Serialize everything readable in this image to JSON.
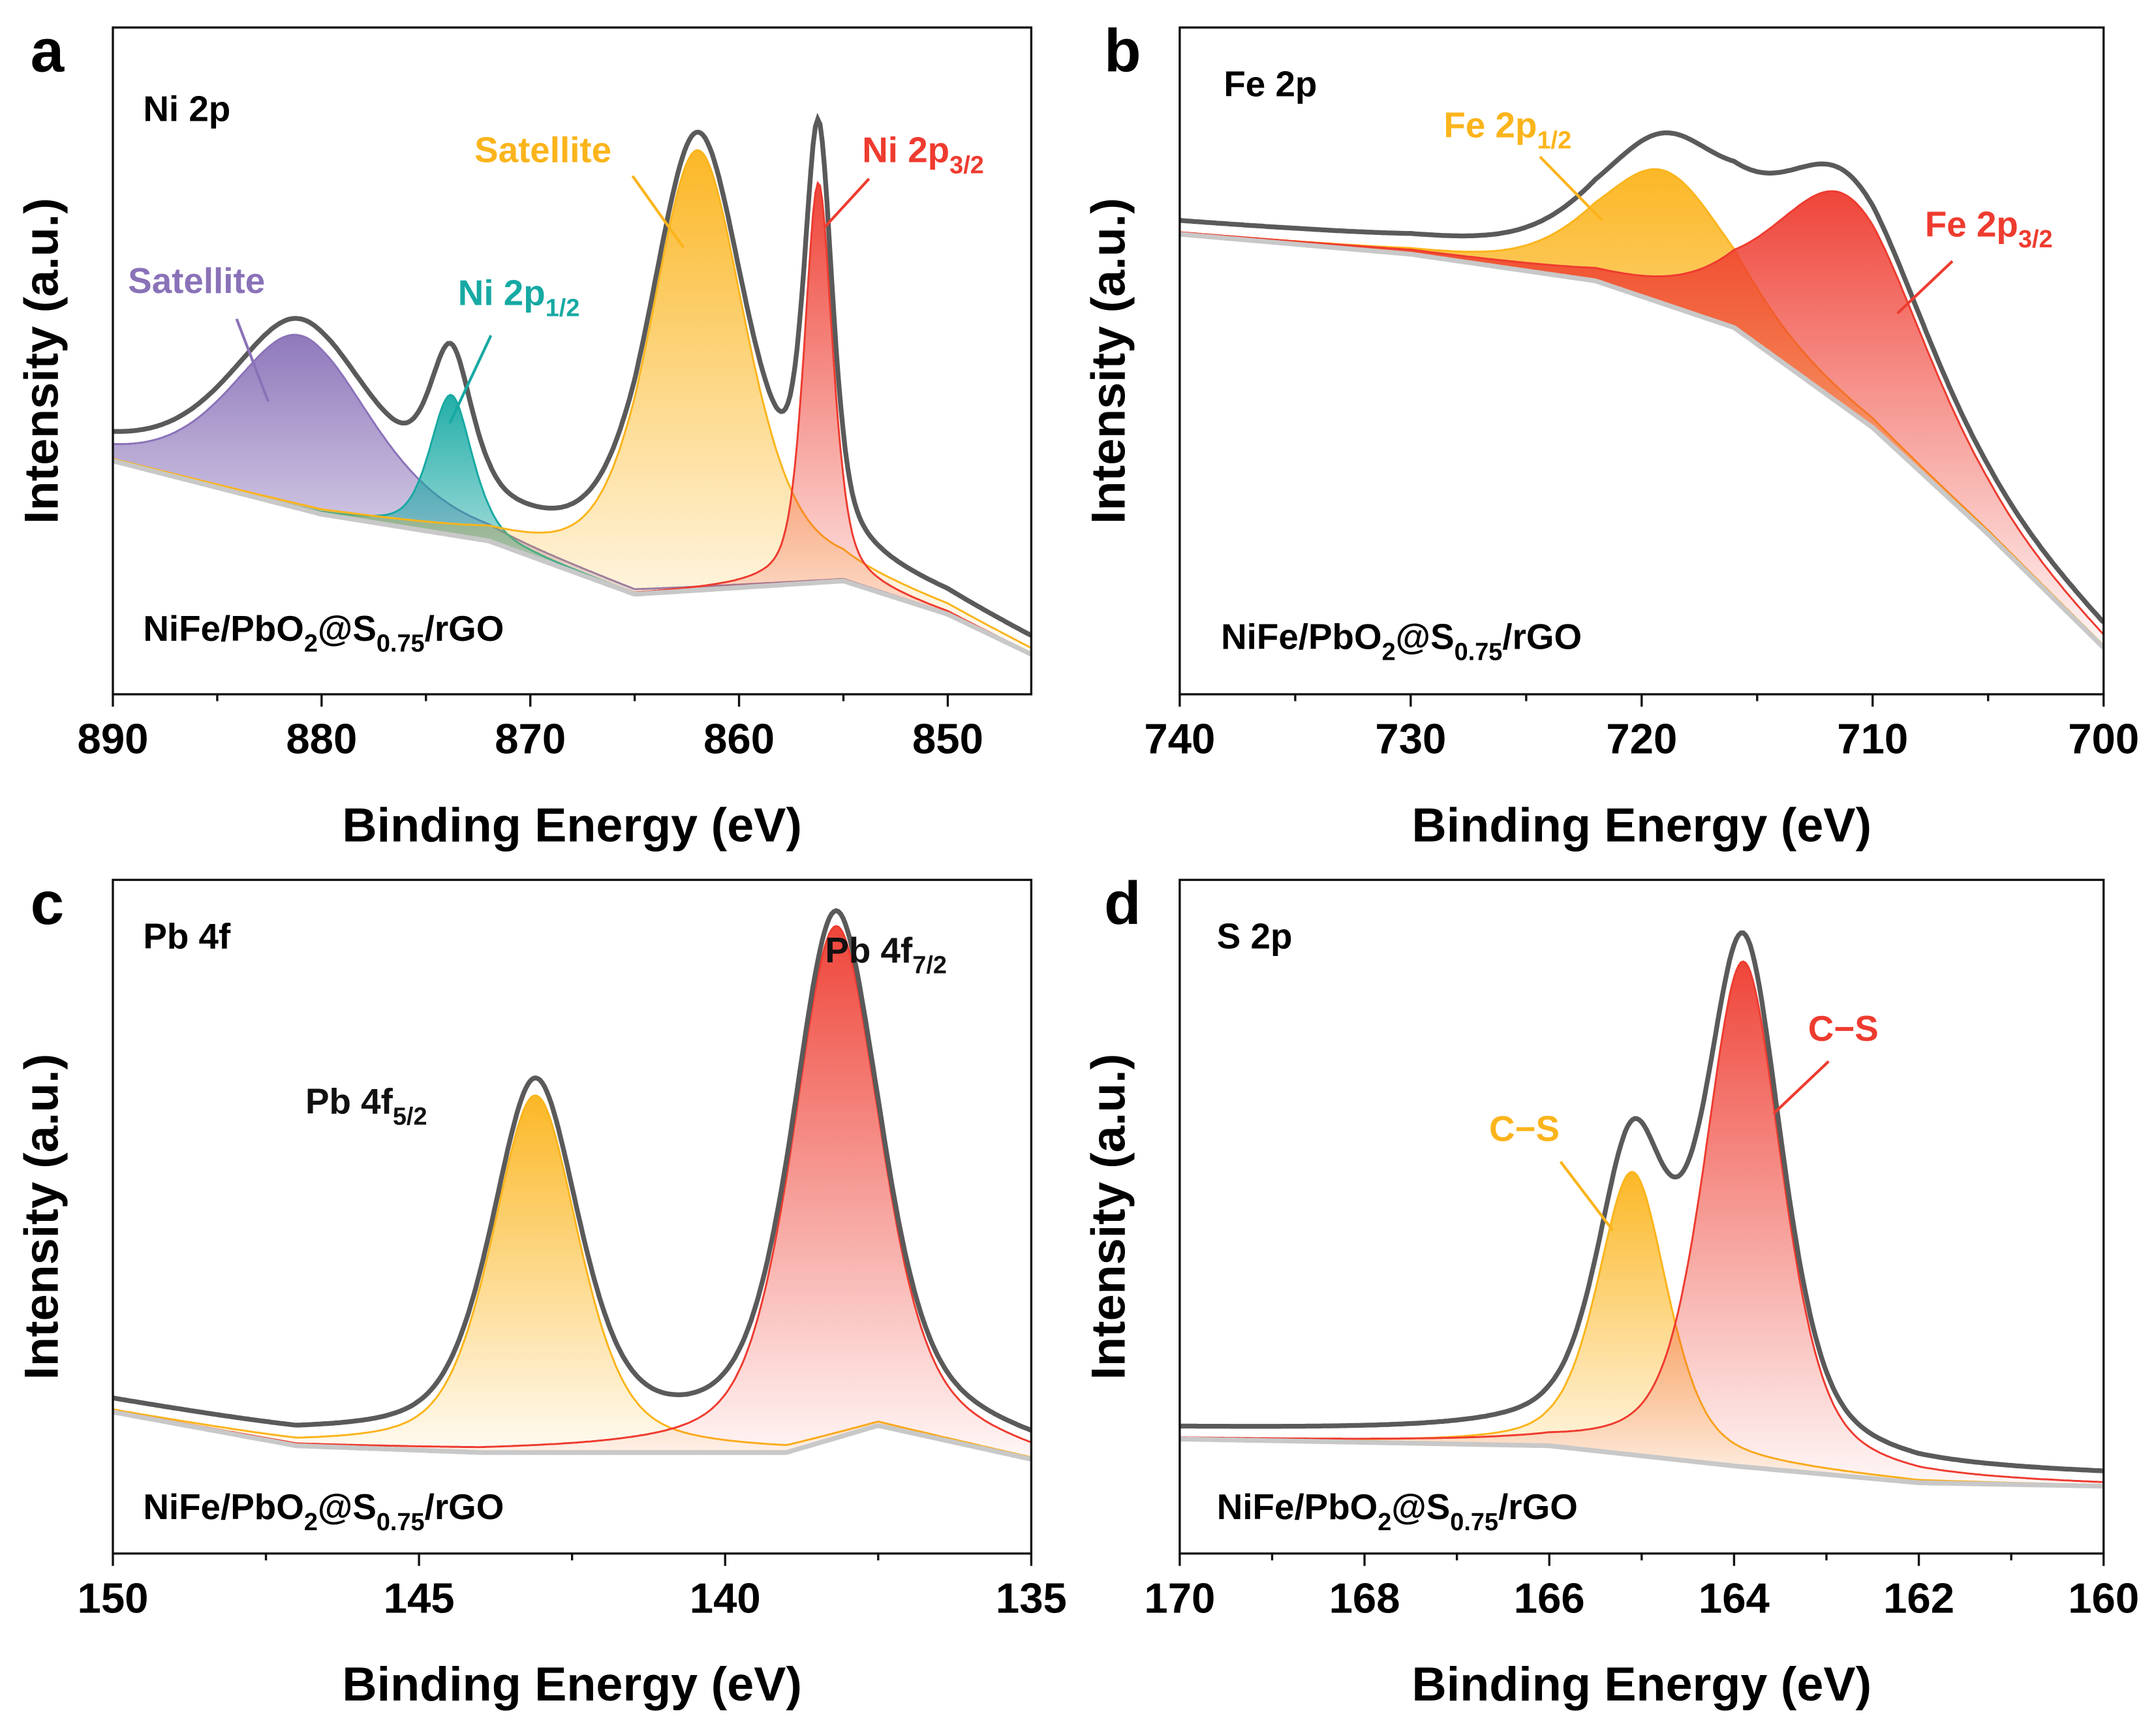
{
  "chart_data": [
    {
      "type": "line",
      "panel_label": "a",
      "title": "Ni 2p",
      "sample": [
        "NiFe/PbO",
        "2",
        "@S",
        "0.75",
        "/rGO"
      ],
      "xlabel": "Binding Energy (eV)",
      "ylabel": "Intensity (a.u.)",
      "xlim": [
        890,
        846
      ],
      "ylim": [
        0,
        1
      ],
      "xticks": [
        890,
        880,
        870,
        860,
        850
      ],
      "minor_step": 5,
      "envelope_color": "#5a5a5a",
      "background_color": "#c8c8c8",
      "background": [
        [
          890,
          0.35
        ],
        [
          880,
          0.27
        ],
        [
          872,
          0.23
        ],
        [
          865,
          0.15
        ],
        [
          860,
          0.16
        ],
        [
          855,
          0.17
        ],
        [
          850,
          0.12
        ],
        [
          846,
          0.06
        ]
      ],
      "peaks": [
        {
          "label": "Satellite",
          "sub": "",
          "center": 881,
          "height": 0.26,
          "fwhm": 8,
          "color": "#8a72b8"
        },
        {
          "label": "Ni 2p",
          "sub": "1/2",
          "center": 873.8,
          "height": 0.21,
          "fwhm": 2.4,
          "color": "#17a9a3"
        },
        {
          "label": "Satellite",
          "sub": "",
          "center": 862,
          "height": 0.66,
          "fwhm": 5.5,
          "color": "#fbb41b"
        },
        {
          "label": "Ni 2p",
          "sub": "3/2",
          "center": 856.2,
          "height": 0.6,
          "fwhm": 1.6,
          "color": "#ee3b2f"
        }
      ]
    },
    {
      "type": "line",
      "panel_label": "b",
      "title": "Fe 2p",
      "sample": [
        "NiFe/PbO",
        "2",
        "@S",
        "0.75",
        "/rGO"
      ],
      "xlabel": "Binding Energy (eV)",
      "ylabel": "Intensity (a.u.)",
      "xlim": [
        740,
        700
      ],
      "ylim": [
        0,
        1
      ],
      "xticks": [
        740,
        730,
        720,
        710,
        700
      ],
      "minor_step": 5,
      "envelope_color": "#5a5a5a",
      "background_color": "#c8c8c8",
      "background": [
        [
          740,
          0.69
        ],
        [
          730,
          0.66
        ],
        [
          722,
          0.62
        ],
        [
          716,
          0.55
        ],
        [
          710,
          0.4
        ],
        [
          705,
          0.24
        ],
        [
          700,
          0.07
        ]
      ],
      "peaks": [
        {
          "label": "Fe 2p",
          "sub": "1/2",
          "center": 719,
          "height": 0.2,
          "fwhm": 7,
          "color": "#fbb41b"
        },
        {
          "label": "Fe 2p",
          "sub": "3/2",
          "center": 711,
          "height": 0.32,
          "fwhm": 8,
          "color": "#ee3b2f"
        }
      ]
    },
    {
      "type": "line",
      "panel_label": "c",
      "title": "Pb 4f",
      "sample": [
        "NiFe/PbO",
        "2",
        "@S",
        "0.75",
        "/rGO"
      ],
      "xlabel": "Binding Energy (eV)",
      "ylabel": "Intensity (a.u.)",
      "xlim": [
        150,
        135
      ],
      "ylim": [
        0,
        1
      ],
      "xticks": [
        150,
        145,
        140,
        135
      ],
      "minor_step": 2.5,
      "envelope_color": "#5a5a5a",
      "background_color": "#c8c8c8",
      "background": [
        [
          150,
          0.21
        ],
        [
          147,
          0.16
        ],
        [
          144,
          0.15
        ],
        [
          141,
          0.15
        ],
        [
          139,
          0.15
        ],
        [
          137.5,
          0.19
        ],
        [
          135,
          0.14
        ]
      ],
      "peaks": [
        {
          "label": "Pb 4f",
          "sub": "5/2",
          "center": 143.1,
          "height": 0.53,
          "fwhm": 1.7,
          "color": "#fbb41b"
        },
        {
          "label": "Pb 4f",
          "sub": "7/2",
          "center": 138.2,
          "height": 0.76,
          "fwhm": 1.7,
          "color": "#ee3b2f"
        }
      ]
    },
    {
      "type": "line",
      "panel_label": "d",
      "title": "S 2p",
      "sample": [
        "NiFe/PbO",
        "2",
        "@S",
        "0.75",
        "/rGO"
      ],
      "xlabel": "Binding Energy (eV)",
      "ylabel": "Intensity (a.u.)",
      "xlim": [
        170,
        160
      ],
      "ylim": [
        0,
        1
      ],
      "xticks": [
        170,
        168,
        166,
        164,
        162,
        160
      ],
      "minor_step": 1,
      "envelope_color": "#5a5a5a",
      "background_color": "#c8c8c8",
      "background": [
        [
          170,
          0.17
        ],
        [
          166,
          0.16
        ],
        [
          164,
          0.13
        ],
        [
          162,
          0.105
        ],
        [
          160,
          0.1
        ]
      ],
      "peaks": [
        {
          "label": "C−S",
          "sub": "",
          "center": 165.1,
          "height": 0.42,
          "fwhm": 0.9,
          "color": "#fbb41b"
        },
        {
          "label": "C−S",
          "sub": "",
          "center": 163.9,
          "height": 0.75,
          "fwhm": 1.0,
          "color": "#ee3b2f"
        }
      ]
    }
  ]
}
